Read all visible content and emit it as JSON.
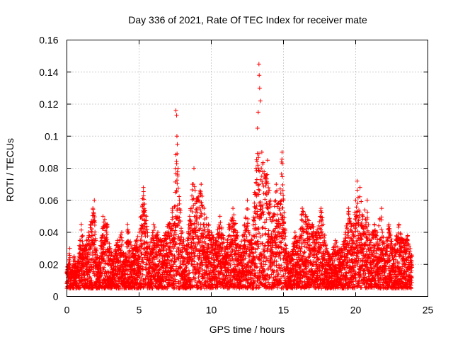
{
  "chart_data": {
    "type": "scatter",
    "title": "Day 336 of 2021, Rate Of TEC Index for receiver mate",
    "xlabel": "GPS time / hours",
    "ylabel": "ROTI / TECUs",
    "xlim": [
      0,
      25
    ],
    "ylim": [
      0,
      0.16
    ],
    "xticks": [
      0,
      5,
      10,
      15,
      20,
      25
    ],
    "xtick_labels": [
      "0",
      "5",
      "10",
      "15",
      "20",
      "25"
    ],
    "yticks": [
      0,
      0.02,
      0.04,
      0.06,
      0.08,
      0.1,
      0.12,
      0.14,
      0.16
    ],
    "ytick_labels": [
      "0",
      "0.02",
      "0.04",
      "0.06",
      "0.08",
      "0.1",
      "0.12",
      "0.14",
      "0.16"
    ],
    "grid": true,
    "marker": "+",
    "series": [
      {
        "name": "ROTI",
        "color": "#ff0000",
        "points": [
          [
            0.1,
            0.02
          ],
          [
            0.2,
            0.03
          ],
          [
            0.3,
            0.015
          ],
          [
            0.5,
            0.025
          ],
          [
            0.7,
            0.018
          ],
          [
            0.9,
            0.035
          ],
          [
            1.0,
            0.045
          ],
          [
            1.2,
            0.03
          ],
          [
            1.5,
            0.04
          ],
          [
            1.8,
            0.055
          ],
          [
            1.9,
            0.06
          ],
          [
            2.0,
            0.035
          ],
          [
            2.2,
            0.02
          ],
          [
            2.5,
            0.05
          ],
          [
            2.8,
            0.045
          ],
          [
            3.0,
            0.03
          ],
          [
            3.2,
            0.025
          ],
          [
            3.5,
            0.035
          ],
          [
            3.8,
            0.04
          ],
          [
            4.0,
            0.02
          ],
          [
            4.2,
            0.045
          ],
          [
            4.5,
            0.03
          ],
          [
            4.8,
            0.035
          ],
          [
            5.0,
            0.04
          ],
          [
            5.3,
            0.068
          ],
          [
            5.5,
            0.05
          ],
          [
            5.7,
            0.03
          ],
          [
            6.0,
            0.045
          ],
          [
            6.3,
            0.04
          ],
          [
            6.6,
            0.035
          ],
          [
            7.0,
            0.045
          ],
          [
            7.3,
            0.055
          ],
          [
            7.5,
            0.065
          ],
          [
            7.55,
            0.116
          ],
          [
            7.6,
            0.113
          ],
          [
            7.62,
            0.1
          ],
          [
            7.65,
            0.095
          ],
          [
            7.7,
            0.08
          ],
          [
            7.8,
            0.06
          ],
          [
            8.0,
            0.04
          ],
          [
            8.2,
            0.03
          ],
          [
            8.5,
            0.05
          ],
          [
            8.7,
            0.07
          ],
          [
            8.8,
            0.08
          ],
          [
            9.0,
            0.06
          ],
          [
            9.3,
            0.07
          ],
          [
            9.5,
            0.055
          ],
          [
            9.8,
            0.045
          ],
          [
            10.0,
            0.04
          ],
          [
            10.3,
            0.035
          ],
          [
            10.6,
            0.05
          ],
          [
            11.0,
            0.03
          ],
          [
            11.2,
            0.045
          ],
          [
            11.5,
            0.055
          ],
          [
            11.8,
            0.04
          ],
          [
            12.0,
            0.03
          ],
          [
            12.3,
            0.045
          ],
          [
            12.5,
            0.06
          ],
          [
            12.8,
            0.035
          ],
          [
            13.0,
            0.065
          ],
          [
            13.1,
            0.08
          ],
          [
            13.2,
            0.105
          ],
          [
            13.25,
            0.115
          ],
          [
            13.3,
            0.145
          ],
          [
            13.32,
            0.138
          ],
          [
            13.35,
            0.13
          ],
          [
            13.4,
            0.122
          ],
          [
            13.5,
            0.09
          ],
          [
            13.7,
            0.075
          ],
          [
            13.9,
            0.085
          ],
          [
            14.1,
            0.06
          ],
          [
            14.3,
            0.05
          ],
          [
            14.5,
            0.07
          ],
          [
            14.7,
            0.055
          ],
          [
            14.9,
            0.09
          ],
          [
            15.0,
            0.06
          ],
          [
            15.2,
            0.03
          ],
          [
            15.5,
            0.025
          ],
          [
            15.8,
            0.04
          ],
          [
            16.0,
            0.035
          ],
          [
            16.3,
            0.055
          ],
          [
            16.6,
            0.05
          ],
          [
            17.0,
            0.045
          ],
          [
            17.3,
            0.04
          ],
          [
            17.6,
            0.055
          ],
          [
            18.0,
            0.03
          ],
          [
            18.3,
            0.025
          ],
          [
            18.6,
            0.035
          ],
          [
            19.0,
            0.03
          ],
          [
            19.3,
            0.04
          ],
          [
            19.5,
            0.055
          ],
          [
            19.8,
            0.04
          ],
          [
            20.0,
            0.06
          ],
          [
            20.1,
            0.072
          ],
          [
            20.3,
            0.068
          ],
          [
            20.5,
            0.05
          ],
          [
            20.8,
            0.06
          ],
          [
            21.0,
            0.035
          ],
          [
            21.3,
            0.045
          ],
          [
            21.5,
            0.04
          ],
          [
            21.8,
            0.055
          ],
          [
            22.0,
            0.03
          ],
          [
            22.3,
            0.045
          ],
          [
            22.6,
            0.03
          ],
          [
            23.0,
            0.045
          ],
          [
            23.3,
            0.035
          ],
          [
            23.6,
            0.038
          ],
          [
            23.9,
            0.025
          ]
        ]
      }
    ]
  }
}
